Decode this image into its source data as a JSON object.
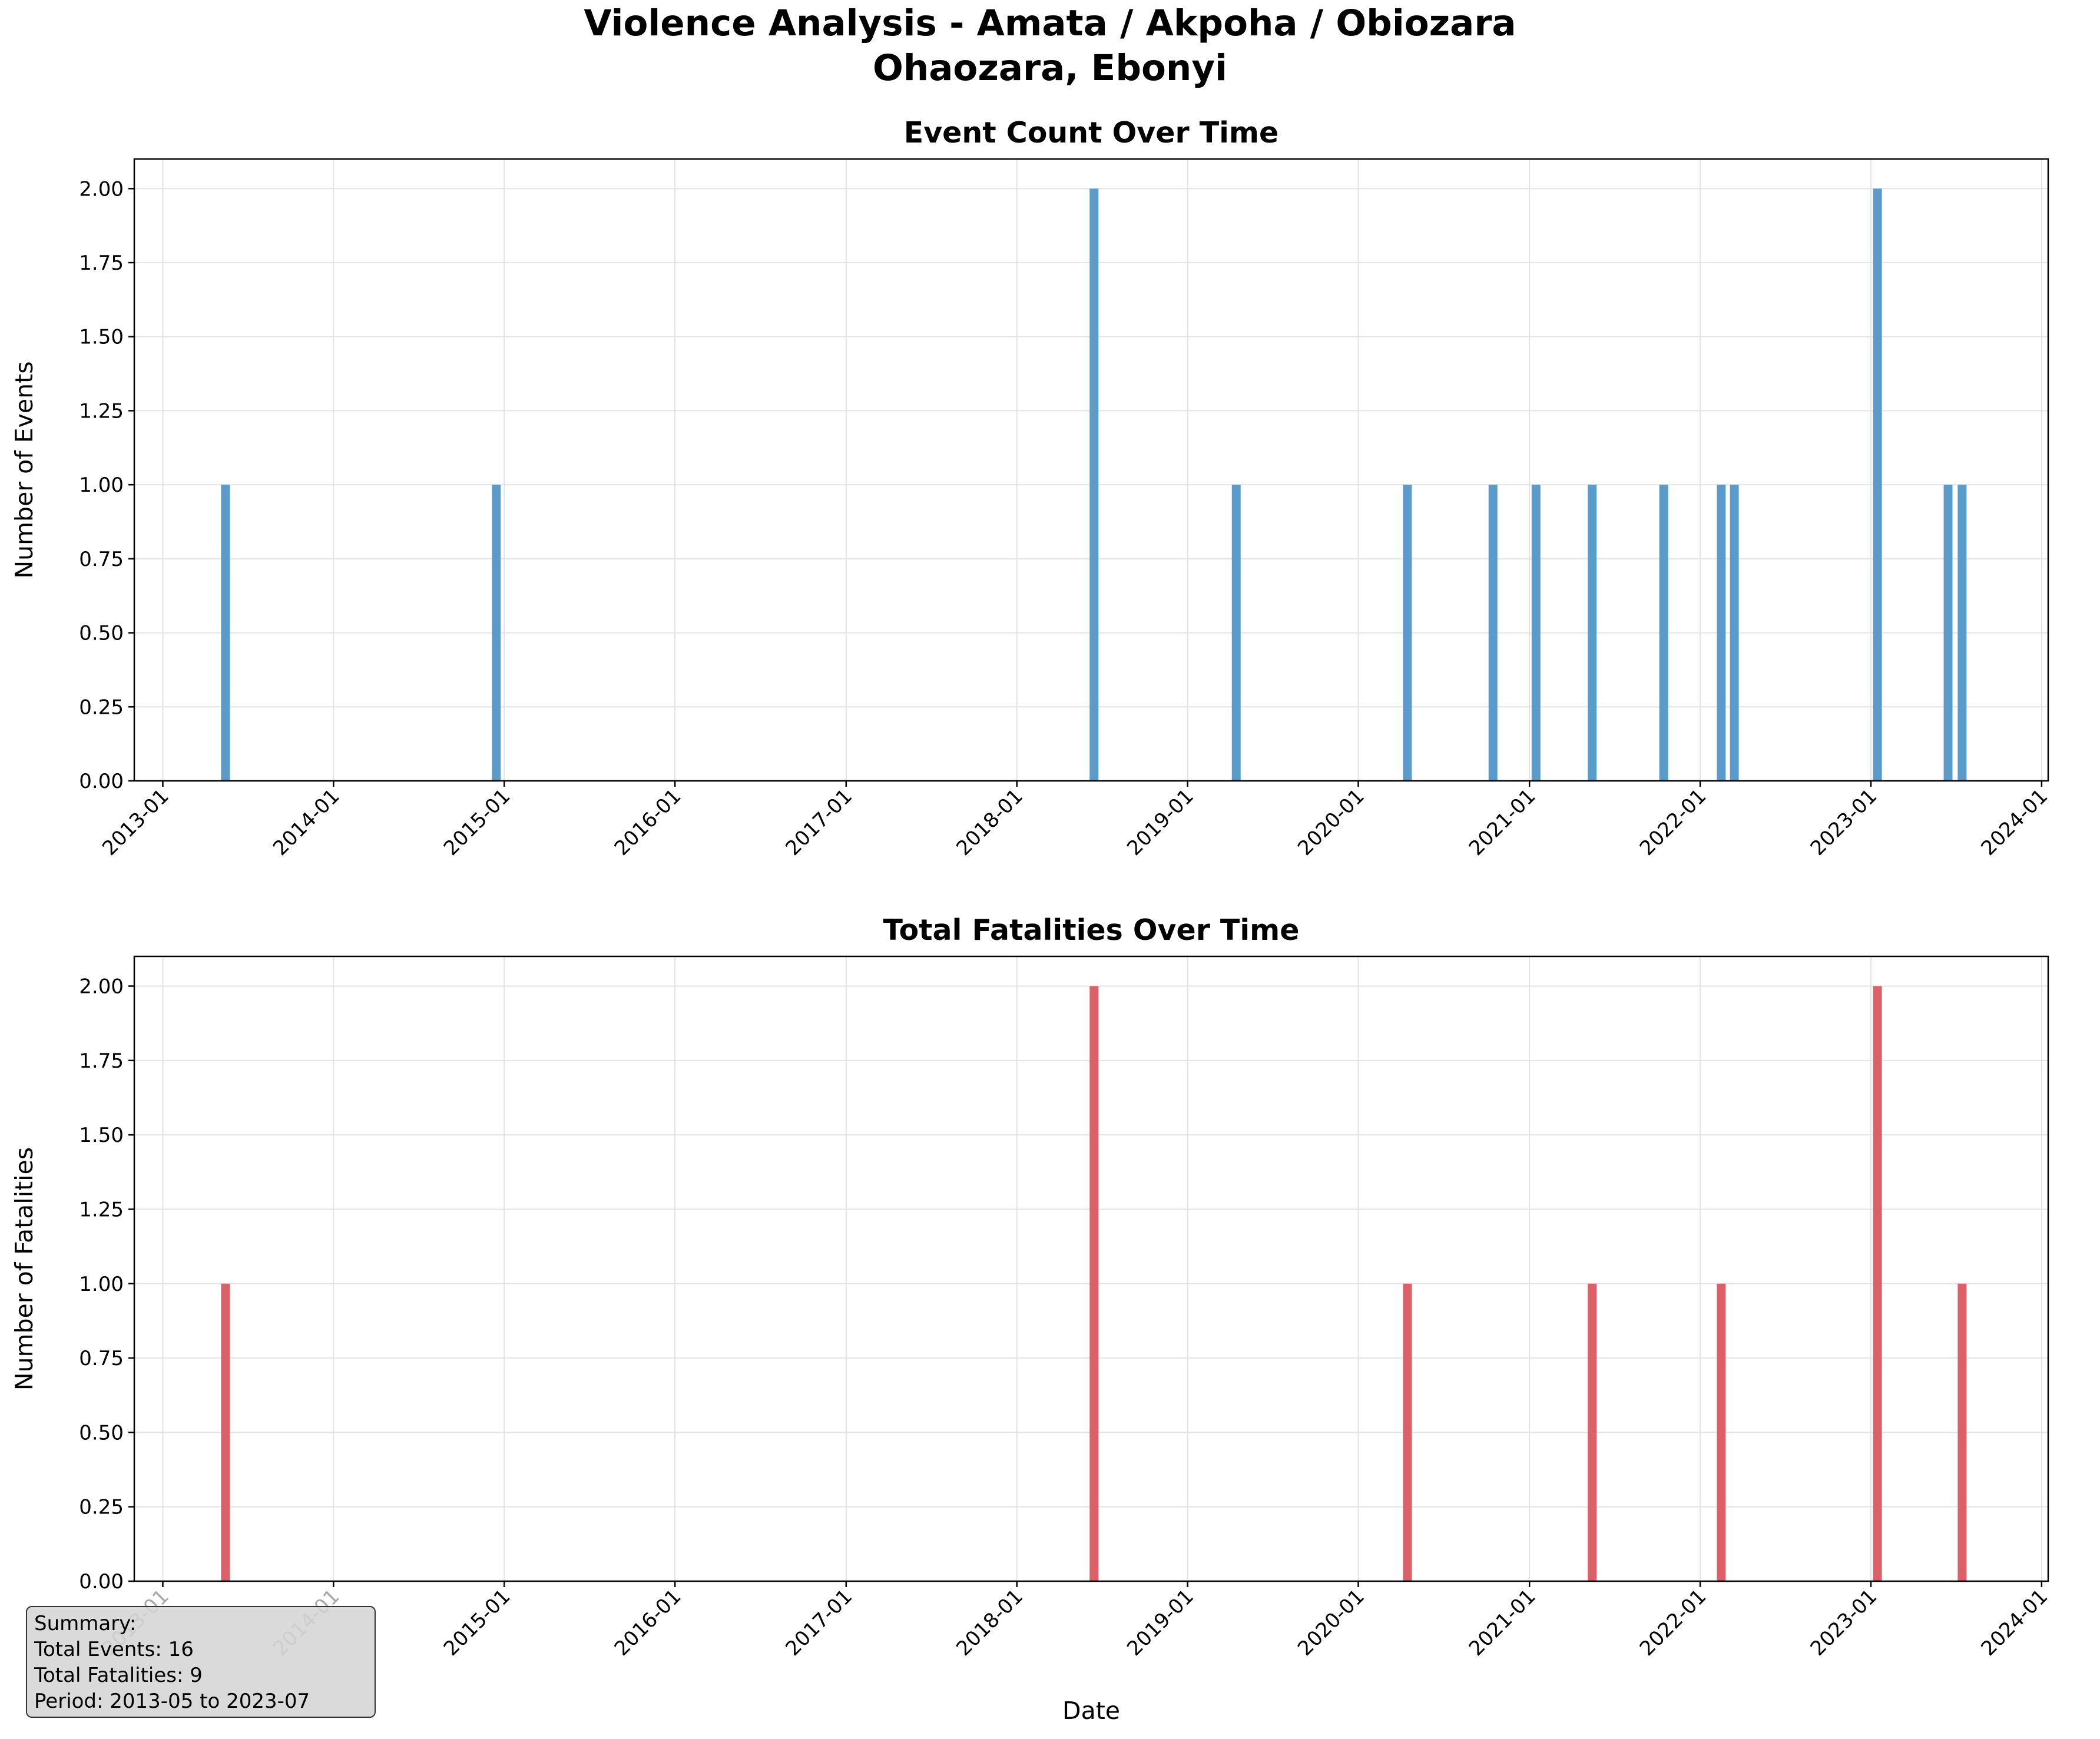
{
  "figure": {
    "title_line1": "Violence Analysis - Amata / Akpoha / Obiozara",
    "title_line2": "Ohaozara, Ebonyi"
  },
  "chart_data": [
    {
      "type": "bar",
      "title": "Event Count Over Time",
      "xlabel": "",
      "ylabel": "Number of Events",
      "x_ticks": [
        "2013-01",
        "2014-01",
        "2015-01",
        "2016-01",
        "2017-01",
        "2018-01",
        "2019-01",
        "2020-01",
        "2021-01",
        "2022-01",
        "2023-01",
        "2024-01"
      ],
      "y_ticks": [
        "0.00",
        "0.25",
        "0.50",
        "0.75",
        "1.00",
        "1.25",
        "1.50",
        "1.75",
        "2.00"
      ],
      "xlim": [
        "2012-11-01",
        "2024-01-15"
      ],
      "ylim": [
        0,
        2.1
      ],
      "grid": true,
      "color": "#5b9bc9",
      "points": [
        {
          "x": "2013-05",
          "y": 1
        },
        {
          "x": "2014-12",
          "y": 1
        },
        {
          "x": "2018-06",
          "y": 2
        },
        {
          "x": "2019-04",
          "y": 1
        },
        {
          "x": "2020-04",
          "y": 1
        },
        {
          "x": "2020-10",
          "y": 1
        },
        {
          "x": "2021-01",
          "y": 1
        },
        {
          "x": "2021-05",
          "y": 1
        },
        {
          "x": "2021-10",
          "y": 1
        },
        {
          "x": "2022-02",
          "y": 1
        },
        {
          "x": "2022-03",
          "y": 1
        },
        {
          "x": "2023-01",
          "y": 2
        },
        {
          "x": "2023-06",
          "y": 1
        },
        {
          "x": "2023-07",
          "y": 1
        }
      ]
    },
    {
      "type": "bar",
      "title": "Total Fatalities Over Time",
      "xlabel": "Date",
      "ylabel": "Number of Fatalities",
      "x_ticks": [
        "2013-01",
        "2014-01",
        "2015-01",
        "2016-01",
        "2017-01",
        "2018-01",
        "2019-01",
        "2020-01",
        "2021-01",
        "2022-01",
        "2023-01",
        "2024-01"
      ],
      "y_ticks": [
        "0.00",
        "0.25",
        "0.50",
        "0.75",
        "1.00",
        "1.25",
        "1.50",
        "1.75",
        "2.00"
      ],
      "xlim": [
        "2012-11-01",
        "2024-01-15"
      ],
      "ylim": [
        0,
        2.1
      ],
      "grid": true,
      "color": "#dc6068",
      "points": [
        {
          "x": "2013-05",
          "y": 1
        },
        {
          "x": "2018-06",
          "y": 2
        },
        {
          "x": "2020-04",
          "y": 1
        },
        {
          "x": "2021-05",
          "y": 1
        },
        {
          "x": "2022-02",
          "y": 1
        },
        {
          "x": "2023-01",
          "y": 2
        },
        {
          "x": "2023-07",
          "y": 1
        }
      ]
    }
  ],
  "summary": {
    "heading": "Summary:",
    "total_events": "Total Events: 16",
    "total_fatalities": "Total Fatalities: 9",
    "period": "Period: 2013-05 to 2023-07"
  }
}
